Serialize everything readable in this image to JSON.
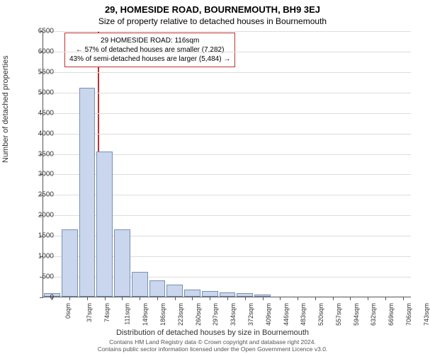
{
  "title_main": "29, HOMESIDE ROAD, BOURNEMOUTH, BH9 3EJ",
  "title_sub": "Size of property relative to detached houses in Bournemouth",
  "ylabel": "Number of detached properties",
  "xlabel": "Distribution of detached houses by size in Bournemouth",
  "chart": {
    "type": "histogram",
    "ylim": [
      0,
      6500
    ],
    "ytick_step": 500,
    "bar_fill": "#c9d6ed",
    "bar_border": "#7a8fb3",
    "grid_color": "#dddddd",
    "axis_color": "#555555",
    "background_color": "#ffffff",
    "x_categories": [
      "0sqm",
      "37sqm",
      "74sqm",
      "111sqm",
      "149sqm",
      "186sqm",
      "223sqm",
      "260sqm",
      "297sqm",
      "334sqm",
      "372sqm",
      "409sqm",
      "446sqm",
      "483sqm",
      "520sqm",
      "557sqm",
      "594sqm",
      "632sqm",
      "669sqm",
      "706sqm",
      "743sqm"
    ],
    "values": [
      80,
      1650,
      5100,
      3550,
      1650,
      600,
      400,
      300,
      180,
      130,
      100,
      80,
      60,
      0,
      0,
      0,
      0,
      0,
      0,
      0,
      0
    ],
    "label_fontsize": 11,
    "tick_fontsize": 10
  },
  "marker": {
    "color": "#c03030",
    "position_sqm": 116,
    "line1": "29 HOMESIDE ROAD: 116sqm",
    "line2": "← 57% of detached houses are smaller (7,282)",
    "line3": "43% of semi-detached houses are larger (5,484) →"
  },
  "footer_line1": "Contains HM Land Registry data © Crown copyright and database right 2024.",
  "footer_line2": "Contains public sector information licensed under the Open Government Licence v3.0."
}
